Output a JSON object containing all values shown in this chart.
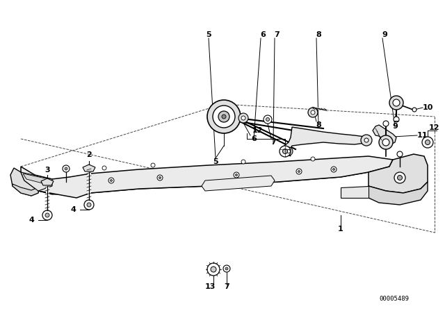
{
  "background_color": "#ffffff",
  "line_color": "#000000",
  "catalog_number": "00005489",
  "fig_width": 6.4,
  "fig_height": 4.48,
  "dpi": 100
}
